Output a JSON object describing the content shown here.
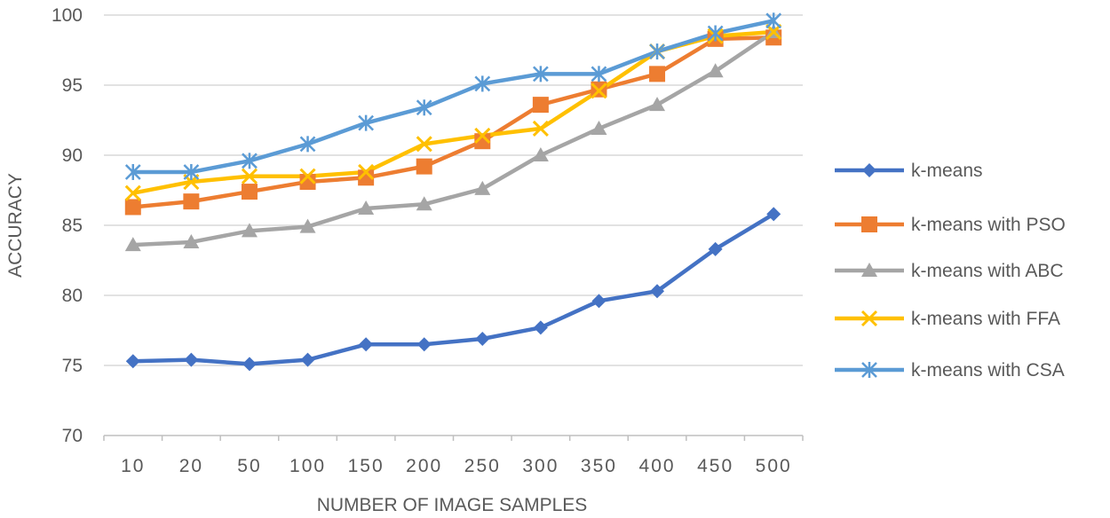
{
  "chart_data": {
    "type": "line",
    "title": "",
    "xlabel": "NUMBER OF IMAGE SAMPLES",
    "ylabel": "ACCURACY",
    "ylim": [
      70,
      100
    ],
    "yticks": [
      70,
      75,
      80,
      85,
      90,
      95,
      100
    ],
    "categories": [
      "10",
      "20",
      "50",
      "100",
      "150",
      "200",
      "250",
      "300",
      "350",
      "400",
      "450",
      "500"
    ],
    "grid": true,
    "legend_position": "right",
    "series": [
      {
        "name": "k-means",
        "color": "#4472C4",
        "marker": "diamond",
        "values": [
          75.3,
          75.4,
          75.1,
          75.4,
          76.5,
          76.5,
          76.9,
          77.7,
          79.6,
          80.3,
          83.3,
          85.8
        ]
      },
      {
        "name": "k-means with PSO",
        "color": "#ED7D31",
        "marker": "square",
        "values": [
          86.3,
          86.7,
          87.4,
          88.1,
          88.4,
          89.2,
          91.0,
          93.6,
          94.7,
          95.8,
          98.3,
          98.4
        ]
      },
      {
        "name": "k-means with ABC",
        "color": "#A5A5A5",
        "marker": "triangle",
        "values": [
          83.6,
          83.8,
          84.6,
          84.9,
          86.2,
          86.5,
          87.6,
          90.0,
          91.9,
          93.6,
          96.0,
          98.8
        ]
      },
      {
        "name": "k-means with FFA",
        "color": "#FFC000",
        "marker": "x",
        "values": [
          87.3,
          88.1,
          88.5,
          88.5,
          88.8,
          90.8,
          91.4,
          91.9,
          94.6,
          97.4,
          98.5,
          98.8
        ]
      },
      {
        "name": "k-means with CSA",
        "color": "#5B9BD5",
        "marker": "star",
        "values": [
          88.8,
          88.8,
          89.6,
          90.8,
          92.3,
          93.4,
          95.1,
          95.8,
          95.8,
          97.4,
          98.7,
          99.6
        ]
      }
    ]
  }
}
